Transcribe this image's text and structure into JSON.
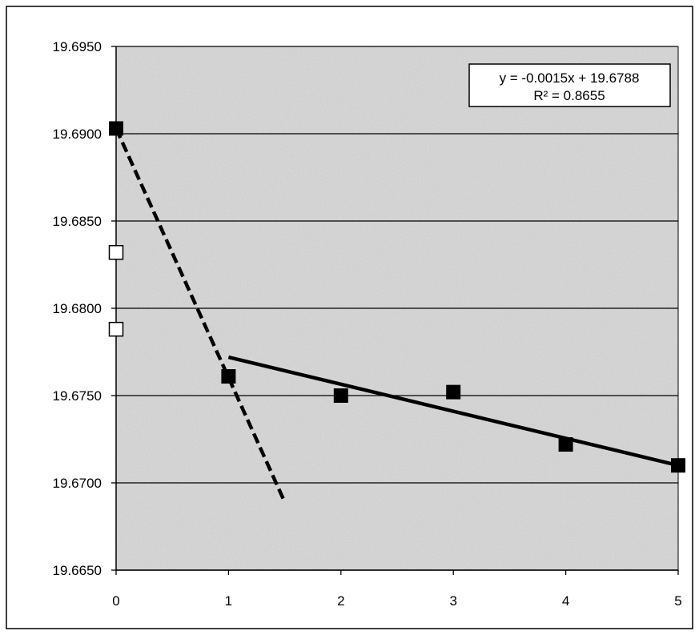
{
  "chart_data": {
    "type": "scatter",
    "title": "",
    "xlabel": "",
    "ylabel": "",
    "xlim": [
      0,
      5
    ],
    "ylim": [
      19.665,
      19.695
    ],
    "x_ticks": [
      "0",
      "1",
      "2",
      "3",
      "4",
      "5"
    ],
    "y_ticks": [
      "19.6650",
      "19.6700",
      "19.6750",
      "19.6800",
      "19.6850",
      "19.6900",
      "19.6950"
    ],
    "grid": "horizontal",
    "legend": "none",
    "series": [
      {
        "marker": "filled-square",
        "color": "#000000",
        "points": [
          {
            "x": 0,
            "y": 19.6903
          },
          {
            "x": 1,
            "y": 19.6761
          },
          {
            "x": 2,
            "y": 19.675
          },
          {
            "x": 3,
            "y": 19.6752
          },
          {
            "x": 4,
            "y": 19.6722
          },
          {
            "x": 5,
            "y": 19.671
          }
        ]
      },
      {
        "marker": "open-square",
        "color": "#000000",
        "points": [
          {
            "x": 0,
            "y": 19.6832
          },
          {
            "x": 0,
            "y": 19.6788
          }
        ]
      }
    ],
    "lines": [
      {
        "style": "dashed",
        "color": "#000000",
        "x": [
          0,
          1.5
        ],
        "y": [
          19.6903,
          19.6689
        ]
      },
      {
        "style": "solid",
        "color": "#000000",
        "x": [
          1,
          5
        ],
        "y": [
          19.6772,
          19.671
        ]
      }
    ],
    "annotation": {
      "line1": "y = -0.0015x + 19.6788",
      "line2": "R² = 0.8655",
      "placement": "top-right"
    },
    "plot_background": "#d8d8d8"
  }
}
